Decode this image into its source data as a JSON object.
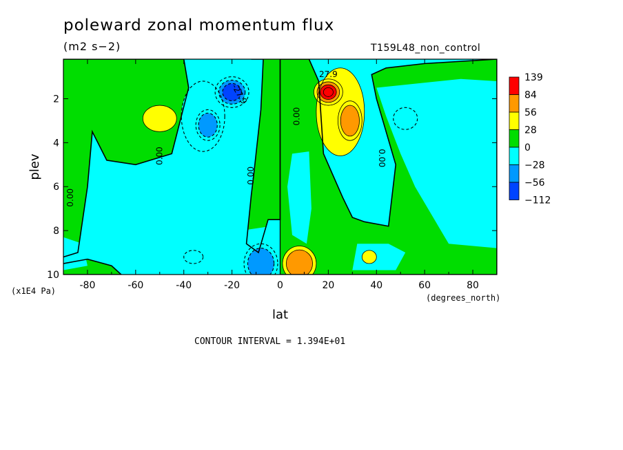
{
  "chart_data": {
    "type": "heatmap",
    "title": "poleward zonal momentum flux",
    "units": "(m2 s−2)",
    "dataset": "T159L48_non_control",
    "xlabel": "lat",
    "xunit": "(degrees_north)",
    "ylabel": "plev",
    "yunit": "(x1E4 Pa)",
    "xlim": [
      -90,
      90
    ],
    "ylim": [
      10,
      0.2
    ],
    "xticks": [
      -80,
      -60,
      -40,
      -20,
      0,
      20,
      40,
      60,
      80
    ],
    "yticks": [
      2,
      4,
      6,
      8,
      10
    ],
    "colorbar": {
      "labels": [
        "139",
        "84",
        "56",
        "28",
        "0",
        "−28",
        "−56",
        "−112"
      ],
      "colors": [
        "#ff0000",
        "#ff9900",
        "#ffff00",
        "#00dd00",
        "#00ffff",
        "#0099ff",
        "#0044ff"
      ]
    },
    "contour_labels": [
      {
        "text": "27.9",
        "lat": 20,
        "plev": 0.9,
        "rotate": 0
      },
      {
        "text": "-27.9",
        "lat": -17,
        "plev": 1.8,
        "rotate": 60
      },
      {
        "text": "0.00",
        "lat": 7,
        "plev": 2.8,
        "rotate": -90
      },
      {
        "text": "0.00",
        "lat": -50,
        "plev": 4.6,
        "rotate": -90
      },
      {
        "text": "0.00",
        "lat": -12,
        "plev": 5.5,
        "rotate": -90
      },
      {
        "text": "0.00",
        "lat": -87,
        "plev": 6.5,
        "rotate": -90
      },
      {
        "text": "0.00",
        "lat": 42,
        "plev": 4.7,
        "rotate": 90
      }
    ],
    "features": [
      {
        "lat": -50,
        "plev": 2.9,
        "value": 40,
        "rx": 7,
        "ry": 0.6
      },
      {
        "lat": -30,
        "plev": 3.2,
        "value": -70,
        "rx": 5,
        "ry": 0.7
      },
      {
        "lat": -20,
        "plev": 1.7,
        "value": -85,
        "rx": 7,
        "ry": 0.7
      },
      {
        "lat": -32,
        "plev": 2.8,
        "value": -55,
        "rx": 9,
        "ry": 1.6
      },
      {
        "lat": 20,
        "plev": 1.7,
        "value": 120,
        "rx": 6,
        "ry": 0.6
      },
      {
        "lat": 29,
        "plev": 3.0,
        "value": 70,
        "rx": 5,
        "ry": 0.9
      },
      {
        "lat": 25,
        "plev": 2.6,
        "value": 45,
        "rx": 10,
        "ry": 2.0
      },
      {
        "lat": 52,
        "plev": 2.9,
        "value": -45,
        "rx": 5,
        "ry": 0.5
      },
      {
        "lat": 8,
        "plev": 9.5,
        "value": 60,
        "rx": 7,
        "ry": 0.8
      },
      {
        "lat": 37,
        "plev": 9.2,
        "value": 40,
        "rx": 3,
        "ry": 0.3
      },
      {
        "lat": -8,
        "plev": 9.5,
        "value": -60,
        "rx": 7,
        "ry": 0.9
      },
      {
        "lat": -36,
        "plev": 9.2,
        "value": -45,
        "rx": 4,
        "ry": 0.3
      }
    ],
    "contour_interval_text": "CONTOUR INTERVAL = 1.394E+01"
  }
}
